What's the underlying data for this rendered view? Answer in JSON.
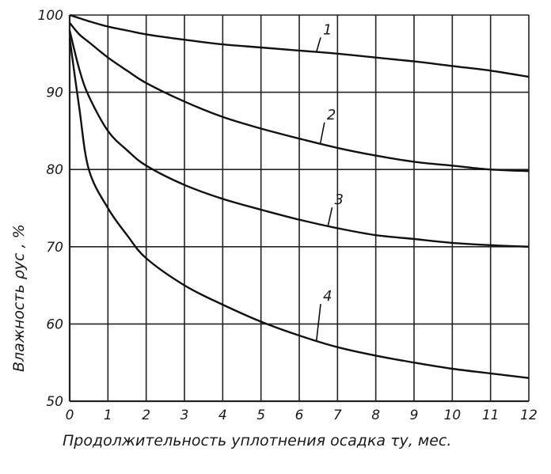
{
  "chart_data": {
    "type": "line",
    "xlabel": "Продолжительность уплотнения осадка τу, мес.",
    "ylabel": "Влажность ρус , %",
    "xlim": [
      0,
      12
    ],
    "ylim": [
      50,
      100
    ],
    "x_ticks": [
      "0",
      "1",
      "2",
      "3",
      "4",
      "5",
      "6",
      "7",
      "8",
      "9",
      "10",
      "11",
      "12"
    ],
    "y_ticks": [
      "50",
      "60",
      "70",
      "80",
      "90",
      "100"
    ],
    "grid": true,
    "x": [
      0,
      0.25,
      0.5,
      1,
      1.5,
      2,
      3,
      4,
      5,
      6,
      7,
      8,
      9,
      10,
      11,
      12
    ],
    "series": [
      {
        "name": "1",
        "label_x": 6.6,
        "label_y": 97.5,
        "values": [
          100,
          99.6,
          99.2,
          98.5,
          98.0,
          97.5,
          96.8,
          96.2,
          95.8,
          95.4,
          95.0,
          94.5,
          94.0,
          93.4,
          92.8,
          92.0
        ]
      },
      {
        "name": "2",
        "label_x": 6.7,
        "label_y": 86.5,
        "values": [
          99,
          97.5,
          96.5,
          94.5,
          92.8,
          91.2,
          88.8,
          86.8,
          85.3,
          84.0,
          82.8,
          81.8,
          81.0,
          80.5,
          80.0,
          79.8
        ]
      },
      {
        "name": "3",
        "label_x": 6.9,
        "label_y": 75.5,
        "values": [
          98,
          93.0,
          89.5,
          85.0,
          82.5,
          80.5,
          78.0,
          76.2,
          74.8,
          73.5,
          72.4,
          71.5,
          71.0,
          70.5,
          70.2,
          70.0
        ]
      },
      {
        "name": "4",
        "label_x": 6.6,
        "label_y": 63.0,
        "values": [
          97,
          88.0,
          80.0,
          75.0,
          71.5,
          68.5,
          65.0,
          62.5,
          60.3,
          58.5,
          57.0,
          55.9,
          55.0,
          54.2,
          53.6,
          53.0
        ]
      }
    ]
  }
}
